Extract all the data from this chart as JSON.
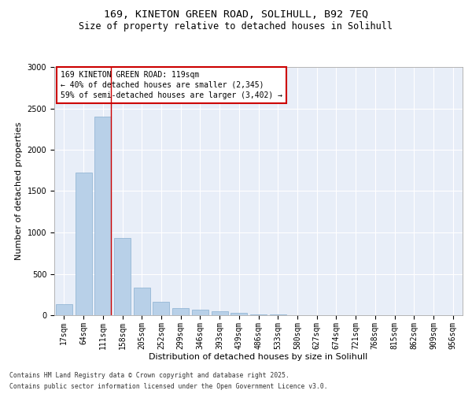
{
  "title_line1": "169, KINETON GREEN ROAD, SOLIHULL, B92 7EQ",
  "title_line2": "Size of property relative to detached houses in Solihull",
  "xlabel": "Distribution of detached houses by size in Solihull",
  "ylabel": "Number of detached properties",
  "categories": [
    "17sqm",
    "64sqm",
    "111sqm",
    "158sqm",
    "205sqm",
    "252sqm",
    "299sqm",
    "346sqm",
    "393sqm",
    "439sqm",
    "486sqm",
    "533sqm",
    "580sqm",
    "627sqm",
    "674sqm",
    "721sqm",
    "768sqm",
    "815sqm",
    "862sqm",
    "909sqm",
    "956sqm"
  ],
  "values": [
    130,
    1720,
    2400,
    930,
    330,
    160,
    90,
    70,
    45,
    25,
    10,
    5,
    2,
    1,
    0,
    0,
    0,
    0,
    0,
    0,
    0
  ],
  "bar_color": "#b8d0e8",
  "bar_edge_color": "#8aafd0",
  "highlight_line_color": "#cc0000",
  "annotation_text": "169 KINETON GREEN ROAD: 119sqm\n← 40% of detached houses are smaller (2,345)\n59% of semi-detached houses are larger (3,402) →",
  "annotation_box_facecolor": "#ffffff",
  "annotation_box_edgecolor": "#cc0000",
  "ylim": [
    0,
    3000
  ],
  "yticks": [
    0,
    500,
    1000,
    1500,
    2000,
    2500,
    3000
  ],
  "background_color": "#e8eef8",
  "grid_color": "#ffffff",
  "footer_line1": "Contains HM Land Registry data © Crown copyright and database right 2025.",
  "footer_line2": "Contains public sector information licensed under the Open Government Licence v3.0.",
  "title_fontsize": 9.5,
  "subtitle_fontsize": 8.5,
  "tick_fontsize": 7,
  "label_fontsize": 8,
  "annotation_fontsize": 7,
  "footer_fontsize": 5.8
}
